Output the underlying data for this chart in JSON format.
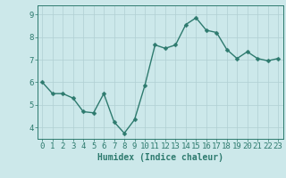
{
  "x": [
    0,
    1,
    2,
    3,
    4,
    5,
    6,
    7,
    8,
    9,
    10,
    11,
    12,
    13,
    14,
    15,
    16,
    17,
    18,
    19,
    20,
    21,
    22,
    23
  ],
  "y": [
    6.0,
    5.5,
    5.5,
    5.3,
    4.7,
    4.65,
    5.5,
    4.25,
    3.75,
    4.35,
    5.85,
    7.65,
    7.5,
    7.65,
    8.55,
    8.85,
    8.3,
    8.2,
    7.45,
    7.05,
    7.35,
    7.05,
    6.95,
    7.05
  ],
  "line_color": "#2d7a6e",
  "marker": "D",
  "marker_size": 2.5,
  "line_width": 1.0,
  "bg_color": "#cce8ea",
  "grid_color": "#b0cfd2",
  "xlabel": "Humidex (Indice chaleur)",
  "xlabel_fontsize": 7,
  "tick_fontsize": 6.5,
  "ylim": [
    3.5,
    9.4
  ],
  "xlim": [
    -0.5,
    23.5
  ],
  "yticks": [
    4,
    5,
    6,
    7,
    8,
    9
  ],
  "xticks": [
    0,
    1,
    2,
    3,
    4,
    5,
    6,
    7,
    8,
    9,
    10,
    11,
    12,
    13,
    14,
    15,
    16,
    17,
    18,
    19,
    20,
    21,
    22,
    23
  ],
  "spine_color": "#2d7a6e",
  "label_color": "#2d7a6e",
  "border_color": "#2d7a6e"
}
